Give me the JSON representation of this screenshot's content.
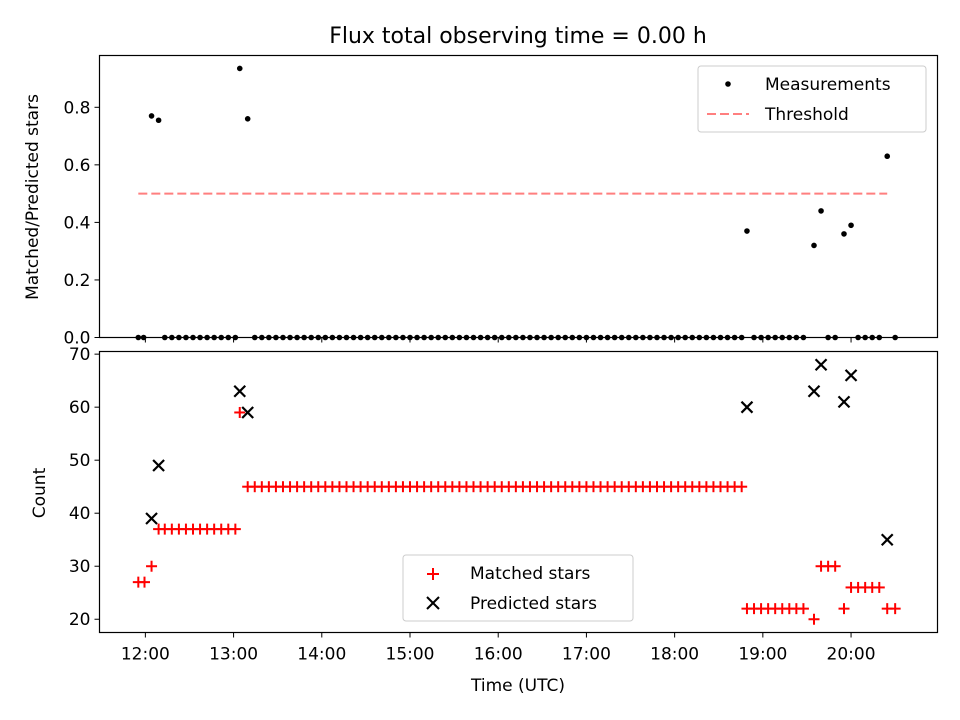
{
  "chart_data": {
    "title": "Flux total observing time = 0.00 h",
    "xlabel": "Time (UTC)",
    "x_tick_labels": [
      "12:00",
      "13:00",
      "14:00",
      "15:00",
      "16:00",
      "17:00",
      "18:00",
      "19:00",
      "20:00"
    ],
    "x_ticks_hours": [
      12,
      13,
      14,
      15,
      16,
      17,
      18,
      19,
      20
    ],
    "xlim_hours": [
      11.48,
      20.98
    ],
    "top": {
      "type": "scatter",
      "ylabel": "Matched/Predicted stars",
      "ylim": [
        0,
        0.98
      ],
      "y_ticks": [
        0.0,
        0.2,
        0.4,
        0.6,
        0.8
      ],
      "y_tick_labels": [
        "0.0",
        "0.2",
        "0.4",
        "0.6",
        "0.8"
      ],
      "legend": {
        "position": "upper right",
        "entries": [
          "Measurements",
          "Threshold"
        ]
      },
      "measurements": [
        {
          "t": 11.92,
          "v": 0
        },
        {
          "t": 11.98,
          "v": 0
        },
        {
          "t": 12.07,
          "v": 0.77
        },
        {
          "t": 12.15,
          "v": 0.755
        },
        {
          "t": 12.22,
          "v": 0
        },
        {
          "t": 12.3,
          "v": 0
        },
        {
          "t": 12.38,
          "v": 0
        },
        {
          "t": 12.46,
          "v": 0
        },
        {
          "t": 12.54,
          "v": 0
        },
        {
          "t": 12.62,
          "v": 0
        },
        {
          "t": 12.7,
          "v": 0
        },
        {
          "t": 12.78,
          "v": 0
        },
        {
          "t": 12.86,
          "v": 0
        },
        {
          "t": 12.94,
          "v": 0
        },
        {
          "t": 13.02,
          "v": 0
        },
        {
          "t": 13.07,
          "v": 0.935
        },
        {
          "t": 13.16,
          "v": 0.76
        },
        {
          "t": 13.24,
          "v": 0
        },
        {
          "t": 13.32,
          "v": 0
        },
        {
          "t": 13.4,
          "v": 0
        },
        {
          "t": 13.48,
          "v": 0
        },
        {
          "t": 13.56,
          "v": 0
        },
        {
          "t": 13.64,
          "v": 0
        },
        {
          "t": 13.72,
          "v": 0
        },
        {
          "t": 13.8,
          "v": 0
        },
        {
          "t": 13.88,
          "v": 0
        },
        {
          "t": 13.96,
          "v": 0
        },
        {
          "t": 14.04,
          "v": 0
        },
        {
          "t": 14.12,
          "v": 0
        },
        {
          "t": 14.2,
          "v": 0
        },
        {
          "t": 14.28,
          "v": 0
        },
        {
          "t": 14.36,
          "v": 0
        },
        {
          "t": 14.44,
          "v": 0
        },
        {
          "t": 14.52,
          "v": 0
        },
        {
          "t": 14.6,
          "v": 0
        },
        {
          "t": 14.68,
          "v": 0
        },
        {
          "t": 14.76,
          "v": 0
        },
        {
          "t": 14.84,
          "v": 0
        },
        {
          "t": 14.92,
          "v": 0
        },
        {
          "t": 15.0,
          "v": 0
        },
        {
          "t": 15.08,
          "v": 0
        },
        {
          "t": 15.16,
          "v": 0
        },
        {
          "t": 15.24,
          "v": 0
        },
        {
          "t": 15.32,
          "v": 0
        },
        {
          "t": 15.4,
          "v": 0
        },
        {
          "t": 15.48,
          "v": 0
        },
        {
          "t": 15.56,
          "v": 0
        },
        {
          "t": 15.64,
          "v": 0
        },
        {
          "t": 15.72,
          "v": 0
        },
        {
          "t": 15.8,
          "v": 0
        },
        {
          "t": 15.88,
          "v": 0
        },
        {
          "t": 15.96,
          "v": 0
        },
        {
          "t": 16.04,
          "v": 0
        },
        {
          "t": 16.12,
          "v": 0
        },
        {
          "t": 16.2,
          "v": 0
        },
        {
          "t": 16.28,
          "v": 0
        },
        {
          "t": 16.36,
          "v": 0
        },
        {
          "t": 16.44,
          "v": 0
        },
        {
          "t": 16.52,
          "v": 0
        },
        {
          "t": 16.6,
          "v": 0
        },
        {
          "t": 16.68,
          "v": 0
        },
        {
          "t": 16.76,
          "v": 0
        },
        {
          "t": 16.84,
          "v": 0
        },
        {
          "t": 16.92,
          "v": 0
        },
        {
          "t": 17.0,
          "v": 0
        },
        {
          "t": 17.08,
          "v": 0
        },
        {
          "t": 17.16,
          "v": 0
        },
        {
          "t": 17.24,
          "v": 0
        },
        {
          "t": 17.32,
          "v": 0
        },
        {
          "t": 17.4,
          "v": 0
        },
        {
          "t": 17.48,
          "v": 0
        },
        {
          "t": 17.56,
          "v": 0
        },
        {
          "t": 17.64,
          "v": 0
        },
        {
          "t": 17.72,
          "v": 0
        },
        {
          "t": 17.8,
          "v": 0
        },
        {
          "t": 17.88,
          "v": 0
        },
        {
          "t": 17.96,
          "v": 0
        },
        {
          "t": 18.04,
          "v": 0
        },
        {
          "t": 18.12,
          "v": 0
        },
        {
          "t": 18.2,
          "v": 0
        },
        {
          "t": 18.28,
          "v": 0
        },
        {
          "t": 18.36,
          "v": 0
        },
        {
          "t": 18.44,
          "v": 0
        },
        {
          "t": 18.52,
          "v": 0
        },
        {
          "t": 18.6,
          "v": 0
        },
        {
          "t": 18.68,
          "v": 0
        },
        {
          "t": 18.76,
          "v": 0
        },
        {
          "t": 18.82,
          "v": 0.37
        },
        {
          "t": 18.9,
          "v": 0
        },
        {
          "t": 18.98,
          "v": 0
        },
        {
          "t": 19.06,
          "v": 0
        },
        {
          "t": 19.14,
          "v": 0
        },
        {
          "t": 19.22,
          "v": 0
        },
        {
          "t": 19.3,
          "v": 0
        },
        {
          "t": 19.38,
          "v": 0
        },
        {
          "t": 19.46,
          "v": 0
        },
        {
          "t": 19.58,
          "v": 0.32
        },
        {
          "t": 19.66,
          "v": 0.44
        },
        {
          "t": 19.74,
          "v": 0
        },
        {
          "t": 19.82,
          "v": 0
        },
        {
          "t": 19.92,
          "v": 0.36
        },
        {
          "t": 20.0,
          "v": 0.39
        },
        {
          "t": 20.08,
          "v": 0
        },
        {
          "t": 20.16,
          "v": 0
        },
        {
          "t": 20.24,
          "v": 0
        },
        {
          "t": 20.32,
          "v": 0
        },
        {
          "t": 20.41,
          "v": 0.63
        },
        {
          "t": 20.5,
          "v": 0
        }
      ],
      "threshold": {
        "value": 0.5,
        "t_start": 11.92,
        "t_end": 20.41,
        "color": "#ff7f7f"
      }
    },
    "bottom": {
      "type": "scatter",
      "ylabel": "Count",
      "ylim": [
        17.5,
        70.5
      ],
      "y_ticks": [
        20,
        30,
        40,
        50,
        60,
        70
      ],
      "y_tick_labels": [
        "20",
        "30",
        "40",
        "50",
        "60",
        "70"
      ],
      "legend": {
        "position": "lower center",
        "entries": [
          "Matched stars",
          "Predicted stars"
        ]
      },
      "matched_color": "#ff0000",
      "predicted_color": "#000000",
      "matched": [
        {
          "t": 11.92,
          "v": 27
        },
        {
          "t": 11.99,
          "v": 27
        },
        {
          "t": 12.07,
          "v": 30
        },
        {
          "t": 12.15,
          "v": 37
        },
        {
          "t": 12.22,
          "v": 37
        },
        {
          "t": 12.3,
          "v": 37
        },
        {
          "t": 12.38,
          "v": 37
        },
        {
          "t": 12.46,
          "v": 37
        },
        {
          "t": 12.54,
          "v": 37
        },
        {
          "t": 12.62,
          "v": 37
        },
        {
          "t": 12.7,
          "v": 37
        },
        {
          "t": 12.78,
          "v": 37
        },
        {
          "t": 12.86,
          "v": 37
        },
        {
          "t": 12.94,
          "v": 37
        },
        {
          "t": 13.02,
          "v": 37
        },
        {
          "t": 13.07,
          "v": 59
        },
        {
          "t": 13.16,
          "v": 45
        },
        {
          "t": 13.24,
          "v": 45
        },
        {
          "t": 13.32,
          "v": 45
        },
        {
          "t": 13.4,
          "v": 45
        },
        {
          "t": 13.48,
          "v": 45
        },
        {
          "t": 13.56,
          "v": 45
        },
        {
          "t": 13.64,
          "v": 45
        },
        {
          "t": 13.72,
          "v": 45
        },
        {
          "t": 13.8,
          "v": 45
        },
        {
          "t": 13.88,
          "v": 45
        },
        {
          "t": 13.96,
          "v": 45
        },
        {
          "t": 14.04,
          "v": 45
        },
        {
          "t": 14.12,
          "v": 45
        },
        {
          "t": 14.2,
          "v": 45
        },
        {
          "t": 14.28,
          "v": 45
        },
        {
          "t": 14.36,
          "v": 45
        },
        {
          "t": 14.44,
          "v": 45
        },
        {
          "t": 14.52,
          "v": 45
        },
        {
          "t": 14.6,
          "v": 45
        },
        {
          "t": 14.68,
          "v": 45
        },
        {
          "t": 14.76,
          "v": 45
        },
        {
          "t": 14.84,
          "v": 45
        },
        {
          "t": 14.92,
          "v": 45
        },
        {
          "t": 15.0,
          "v": 45
        },
        {
          "t": 15.08,
          "v": 45
        },
        {
          "t": 15.16,
          "v": 45
        },
        {
          "t": 15.24,
          "v": 45
        },
        {
          "t": 15.32,
          "v": 45
        },
        {
          "t": 15.4,
          "v": 45
        },
        {
          "t": 15.48,
          "v": 45
        },
        {
          "t": 15.56,
          "v": 45
        },
        {
          "t": 15.64,
          "v": 45
        },
        {
          "t": 15.72,
          "v": 45
        },
        {
          "t": 15.8,
          "v": 45
        },
        {
          "t": 15.88,
          "v": 45
        },
        {
          "t": 15.96,
          "v": 45
        },
        {
          "t": 16.04,
          "v": 45
        },
        {
          "t": 16.12,
          "v": 45
        },
        {
          "t": 16.2,
          "v": 45
        },
        {
          "t": 16.28,
          "v": 45
        },
        {
          "t": 16.36,
          "v": 45
        },
        {
          "t": 16.44,
          "v": 45
        },
        {
          "t": 16.52,
          "v": 45
        },
        {
          "t": 16.6,
          "v": 45
        },
        {
          "t": 16.68,
          "v": 45
        },
        {
          "t": 16.76,
          "v": 45
        },
        {
          "t": 16.84,
          "v": 45
        },
        {
          "t": 16.92,
          "v": 45
        },
        {
          "t": 17.0,
          "v": 45
        },
        {
          "t": 17.08,
          "v": 45
        },
        {
          "t": 17.16,
          "v": 45
        },
        {
          "t": 17.24,
          "v": 45
        },
        {
          "t": 17.32,
          "v": 45
        },
        {
          "t": 17.4,
          "v": 45
        },
        {
          "t": 17.48,
          "v": 45
        },
        {
          "t": 17.56,
          "v": 45
        },
        {
          "t": 17.64,
          "v": 45
        },
        {
          "t": 17.72,
          "v": 45
        },
        {
          "t": 17.8,
          "v": 45
        },
        {
          "t": 17.88,
          "v": 45
        },
        {
          "t": 17.96,
          "v": 45
        },
        {
          "t": 18.04,
          "v": 45
        },
        {
          "t": 18.12,
          "v": 45
        },
        {
          "t": 18.2,
          "v": 45
        },
        {
          "t": 18.28,
          "v": 45
        },
        {
          "t": 18.36,
          "v": 45
        },
        {
          "t": 18.44,
          "v": 45
        },
        {
          "t": 18.52,
          "v": 45
        },
        {
          "t": 18.6,
          "v": 45
        },
        {
          "t": 18.68,
          "v": 45
        },
        {
          "t": 18.76,
          "v": 45
        },
        {
          "t": 18.82,
          "v": 22
        },
        {
          "t": 18.9,
          "v": 22
        },
        {
          "t": 18.98,
          "v": 22
        },
        {
          "t": 19.06,
          "v": 22
        },
        {
          "t": 19.14,
          "v": 22
        },
        {
          "t": 19.22,
          "v": 22
        },
        {
          "t": 19.3,
          "v": 22
        },
        {
          "t": 19.38,
          "v": 22
        },
        {
          "t": 19.46,
          "v": 22
        },
        {
          "t": 19.58,
          "v": 20
        },
        {
          "t": 19.66,
          "v": 30
        },
        {
          "t": 19.74,
          "v": 30
        },
        {
          "t": 19.82,
          "v": 30
        },
        {
          "t": 19.92,
          "v": 22
        },
        {
          "t": 20.0,
          "v": 26
        },
        {
          "t": 20.08,
          "v": 26
        },
        {
          "t": 20.16,
          "v": 26
        },
        {
          "t": 20.24,
          "v": 26
        },
        {
          "t": 20.32,
          "v": 26
        },
        {
          "t": 20.41,
          "v": 22
        },
        {
          "t": 20.5,
          "v": 22
        }
      ],
      "predicted": [
        {
          "t": 12.07,
          "v": 39
        },
        {
          "t": 12.15,
          "v": 49
        },
        {
          "t": 13.07,
          "v": 63
        },
        {
          "t": 13.16,
          "v": 59
        },
        {
          "t": 18.82,
          "v": 60
        },
        {
          "t": 19.58,
          "v": 63
        },
        {
          "t": 19.66,
          "v": 68
        },
        {
          "t": 19.92,
          "v": 61
        },
        {
          "t": 20.0,
          "v": 66
        },
        {
          "t": 20.41,
          "v": 35
        }
      ]
    }
  }
}
